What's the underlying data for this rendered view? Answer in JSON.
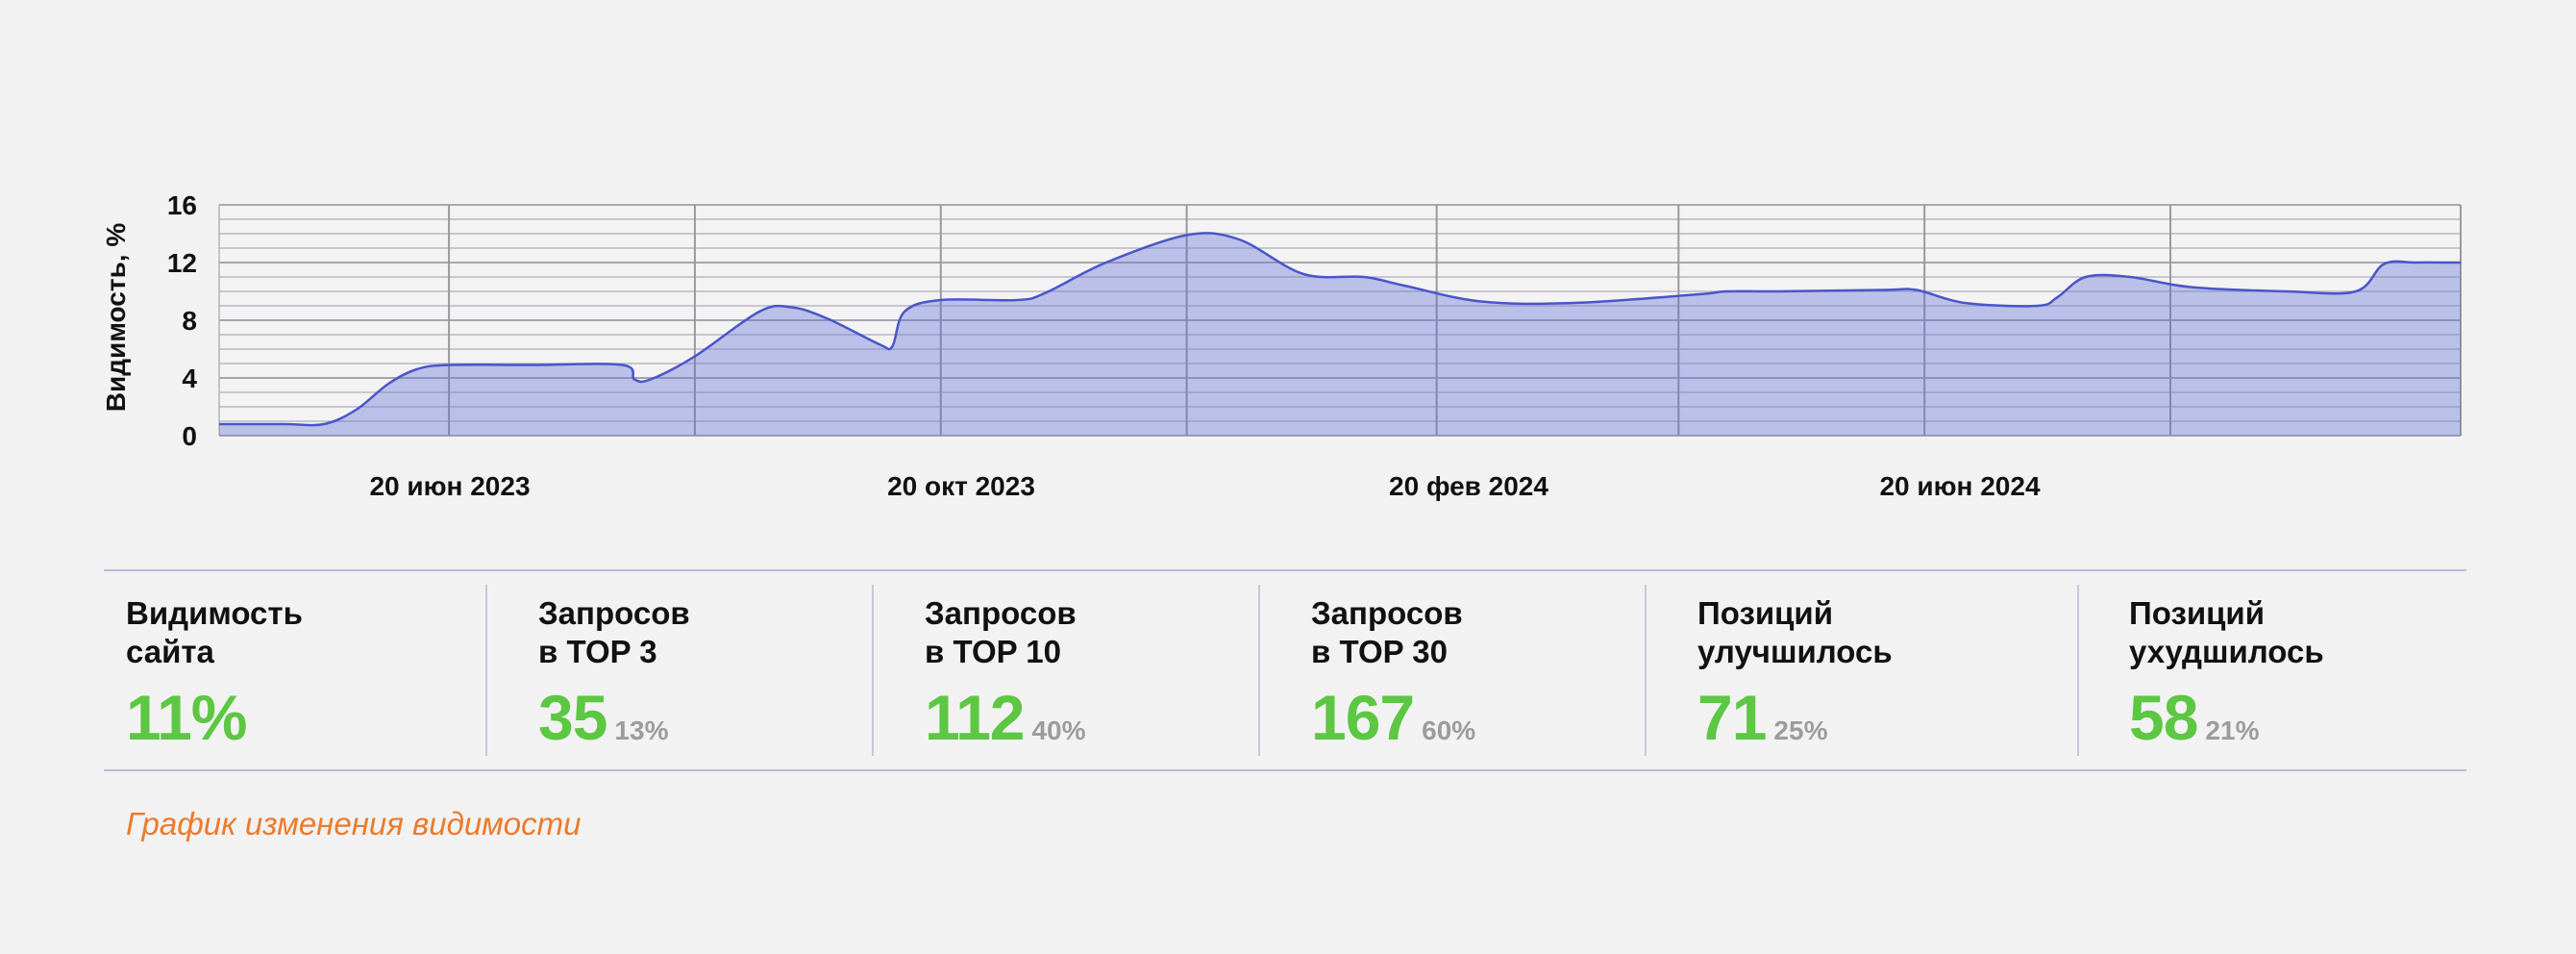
{
  "chart_data": {
    "type": "area",
    "ylabel": "Видимость, %",
    "ylim": [
      0,
      16
    ],
    "yticks": [
      0,
      4,
      8,
      12,
      16
    ],
    "x_ticks": [
      "20 июн 2023",
      "20 окт 2023",
      "20 фев 2024",
      "20 июн 2024"
    ],
    "x_start": "2023-04-24",
    "x_end": "2024-10-31",
    "grid": true,
    "color": "#5a67d8",
    "series": [
      {
        "values": [
          [
            "2023-04-24",
            0.8
          ],
          [
            "2023-05-10",
            0.8
          ],
          [
            "2023-05-20",
            0.8
          ],
          [
            "2023-05-28",
            1.8
          ],
          [
            "2023-06-05",
            3.6
          ],
          [
            "2023-06-12",
            4.6
          ],
          [
            "2023-06-20",
            4.9
          ],
          [
            "2023-07-10",
            4.9
          ],
          [
            "2023-08-02",
            4.9
          ],
          [
            "2023-08-05",
            3.9
          ],
          [
            "2023-08-09",
            3.9
          ],
          [
            "2023-08-20",
            5.5
          ],
          [
            "2023-09-05",
            8.6
          ],
          [
            "2023-09-13",
            8.9
          ],
          [
            "2023-09-22",
            8.1
          ],
          [
            "2023-10-05",
            6.3
          ],
          [
            "2023-10-08",
            6.2
          ],
          [
            "2023-10-11",
            8.6
          ],
          [
            "2023-10-20",
            9.4
          ],
          [
            "2023-11-08",
            9.4
          ],
          [
            "2023-11-15",
            9.9
          ],
          [
            "2023-11-30",
            12.0
          ],
          [
            "2023-12-20",
            13.9
          ],
          [
            "2024-01-02",
            13.6
          ],
          [
            "2024-01-18",
            11.2
          ],
          [
            "2024-02-02",
            11.0
          ],
          [
            "2024-02-12",
            10.4
          ],
          [
            "2024-03-02",
            9.3
          ],
          [
            "2024-03-25",
            9.2
          ],
          [
            "2024-04-25",
            9.8
          ],
          [
            "2024-05-02",
            10.0
          ],
          [
            "2024-05-15",
            10.0
          ],
          [
            "2024-06-10",
            10.1
          ],
          [
            "2024-06-18",
            10.1
          ],
          [
            "2024-06-30",
            9.2
          ],
          [
            "2024-07-18",
            9.0
          ],
          [
            "2024-07-23",
            9.6
          ],
          [
            "2024-07-30",
            11.0
          ],
          [
            "2024-08-10",
            11.0
          ],
          [
            "2024-08-25",
            10.3
          ],
          [
            "2024-09-18",
            10.0
          ],
          [
            "2024-10-05",
            10.0
          ],
          [
            "2024-10-12",
            11.9
          ],
          [
            "2024-10-20",
            12.0
          ],
          [
            "2024-10-28",
            12.0
          ],
          [
            "2024-10-31",
            12.0
          ]
        ]
      }
    ]
  },
  "stats": [
    {
      "label_line1": "Видимость",
      "label_line2": "сайта",
      "value": "11%",
      "pct": ""
    },
    {
      "label_line1": "Запросов",
      "label_line2": "в TOP 3",
      "value": "35",
      "pct": "13%"
    },
    {
      "label_line1": "Запросов",
      "label_line2": "в TOP 10",
      "value": "112",
      "pct": "40%"
    },
    {
      "label_line1": "Запросов",
      "label_line2": "в TOP 30",
      "value": "167",
      "pct": "60%"
    },
    {
      "label_line1": "Позиций",
      "label_line2": "улучшилось",
      "value": "71",
      "pct": "25%"
    },
    {
      "label_line1": "Позиций",
      "label_line2": "ухудшилось",
      "value": "58",
      "pct": "21%"
    }
  ],
  "caption": "График изменения видимости",
  "colors": {
    "value": "#5cc742",
    "pct": "#9c9c9c",
    "caption": "#ee7a2b",
    "area": "#5a67d8"
  }
}
